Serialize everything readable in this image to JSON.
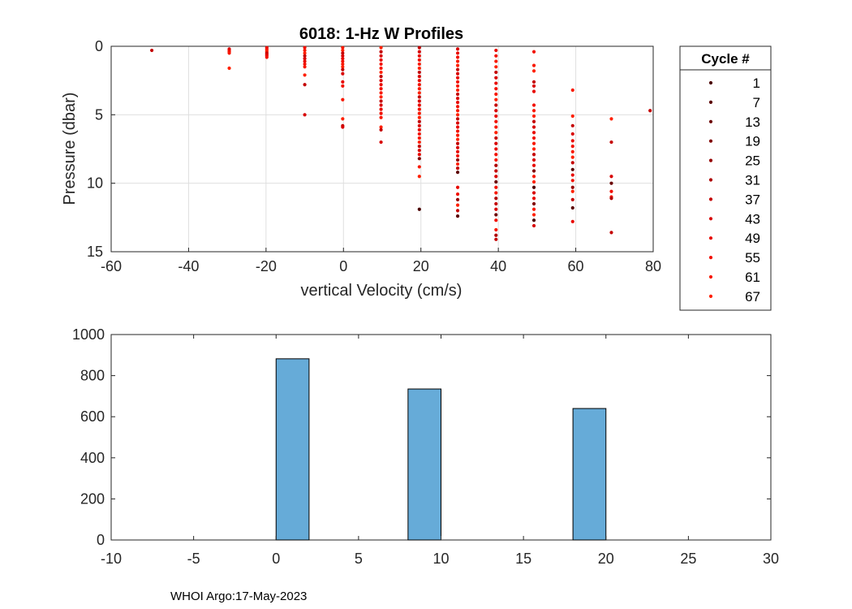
{
  "footer_text": "WHOI Argo:17-May-2023",
  "colors": {
    "grid": "#dfdfdf",
    "axis": "#262626",
    "bar_fill": "#66abd8",
    "bar_edge": "#000000"
  },
  "chart_data": [
    {
      "type": "scatter",
      "title": "6018: 1-Hz W Profiles",
      "xlabel": "vertical Velocity (cm/s)",
      "ylabel": "Pressure (dbar)",
      "xlim": [
        -60,
        80
      ],
      "ylim": [
        0,
        15
      ],
      "y_reversed": true,
      "grid": true,
      "xticks": [
        "-60",
        "-40",
        "-20",
        "0",
        "20",
        "40",
        "60",
        "80"
      ],
      "yticks": [
        "0",
        "5",
        "10",
        "15"
      ],
      "legend": {
        "title": "Cycle #",
        "placement": "outside-right",
        "entries": [
          {
            "label": "1",
            "color": "#4a0000"
          },
          {
            "label": "7",
            "color": "#5a0000"
          },
          {
            "label": "13",
            "color": "#6b0000"
          },
          {
            "label": "19",
            "color": "#800000"
          },
          {
            "label": "25",
            "color": "#960000"
          },
          {
            "label": "31",
            "color": "#ad0000"
          },
          {
            "label": "37",
            "color": "#c40000"
          },
          {
            "label": "43",
            "color": "#d80000"
          },
          {
            "label": "49",
            "color": "#e80800"
          },
          {
            "label": "55",
            "color": "#f21000"
          },
          {
            "label": "61",
            "color": "#f81800"
          },
          {
            "label": "67",
            "color": "#ff2000"
          }
        ]
      },
      "columns": [
        {
          "x": -49.5,
          "pressures": [
            0.3
          ]
        },
        {
          "x": -29.5,
          "pressures": [
            0.2,
            0.3,
            0.4,
            0.5,
            1.6
          ]
        },
        {
          "x": -19.8,
          "pressures": [
            0.1,
            0.2,
            0.3,
            0.4,
            0.5,
            0.6,
            0.7,
            0.8
          ]
        },
        {
          "x": -10.0,
          "pressures": [
            0.1,
            0.3,
            0.5,
            0.7,
            0.9,
            1.1,
            1.3,
            1.5,
            2.1,
            2.8,
            5.0
          ]
        },
        {
          "x": -0.2,
          "pressures": [
            0.1,
            0.3,
            0.5,
            0.7,
            0.9,
            1.1,
            1.3,
            1.5,
            1.7,
            2.0,
            2.6,
            2.9,
            3.9,
            5.3,
            5.8,
            5.9
          ]
        },
        {
          "x": 9.7,
          "pressures": [
            0.1,
            0.4,
            0.7,
            1.0,
            1.3,
            1.6,
            1.9,
            2.2,
            2.5,
            2.8,
            3.1,
            3.4,
            3.7,
            4.0,
            4.3,
            4.6,
            4.9,
            5.2,
            5.9,
            6.1,
            7.0
          ]
        },
        {
          "x": 19.6,
          "pressures": [
            0.1,
            0.4,
            0.7,
            1.0,
            1.3,
            1.6,
            1.9,
            2.2,
            2.5,
            2.8,
            3.1,
            3.4,
            3.7,
            4.0,
            4.3,
            4.6,
            4.9,
            5.2,
            5.5,
            5.8,
            6.1,
            6.4,
            6.7,
            7.0,
            7.3,
            7.6,
            7.9,
            8.2,
            8.8,
            9.5,
            11.9
          ]
        },
        {
          "x": 29.5,
          "pressures": [
            0.2,
            0.5,
            0.8,
            1.1,
            1.4,
            1.7,
            2.0,
            2.3,
            2.6,
            2.9,
            3.2,
            3.5,
            3.8,
            4.1,
            4.4,
            4.7,
            5.0,
            5.3,
            5.6,
            5.9,
            6.2,
            6.5,
            6.8,
            7.1,
            7.4,
            7.7,
            8.0,
            8.3,
            8.6,
            8.9,
            9.2,
            10.3,
            10.8,
            11.2,
            11.6,
            12.0,
            12.4
          ]
        },
        {
          "x": 39.4,
          "pressures": [
            0.3,
            0.7,
            1.1,
            1.5,
            1.9,
            2.3,
            2.7,
            3.1,
            3.5,
            3.9,
            4.3,
            4.7,
            5.1,
            5.5,
            5.9,
            6.3,
            6.7,
            7.1,
            7.5,
            7.9,
            8.3,
            8.7,
            9.1,
            9.5,
            9.9,
            10.3,
            10.7,
            11.1,
            11.5,
            11.9,
            12.3,
            12.7,
            13.4,
            13.8,
            14.1
          ]
        },
        {
          "x": 49.2,
          "pressures": [
            0.4,
            1.4,
            1.8,
            2.6,
            2.9,
            3.3,
            4.3,
            4.7,
            5.1,
            5.5,
            5.9,
            6.3,
            6.7,
            7.1,
            7.5,
            7.9,
            8.3,
            8.7,
            9.1,
            9.5,
            9.9,
            10.3,
            10.7,
            11.1,
            11.5,
            11.9,
            12.3,
            12.7,
            13.1
          ]
        },
        {
          "x": 59.2,
          "pressures": [
            3.2,
            5.1,
            5.8,
            6.4,
            6.9,
            7.3,
            7.7,
            8.1,
            8.5,
            9.0,
            9.4,
            9.8,
            10.3,
            10.6,
            11.2,
            11.8,
            12.8
          ]
        },
        {
          "x": 69.2,
          "pressures": [
            5.3,
            7.0,
            9.5,
            10.0,
            10.6,
            11.0,
            11.1,
            13.6
          ]
        },
        {
          "x": 79.2,
          "pressures": [
            4.7
          ]
        }
      ]
    },
    {
      "type": "bar",
      "xlim": [
        -10,
        30
      ],
      "ylim": [
        0,
        1000
      ],
      "grid": false,
      "xticks": [
        "-10",
        "-5",
        "0",
        "5",
        "10",
        "15",
        "20",
        "25",
        "30"
      ],
      "yticks": [
        "0",
        "200",
        "400",
        "600",
        "800",
        "1000"
      ],
      "bins": [
        {
          "x0": 0,
          "x1": 2,
          "value": 882
        },
        {
          "x0": 8,
          "x1": 10,
          "value": 735
        },
        {
          "x0": 18,
          "x1": 20,
          "value": 640
        }
      ]
    }
  ]
}
